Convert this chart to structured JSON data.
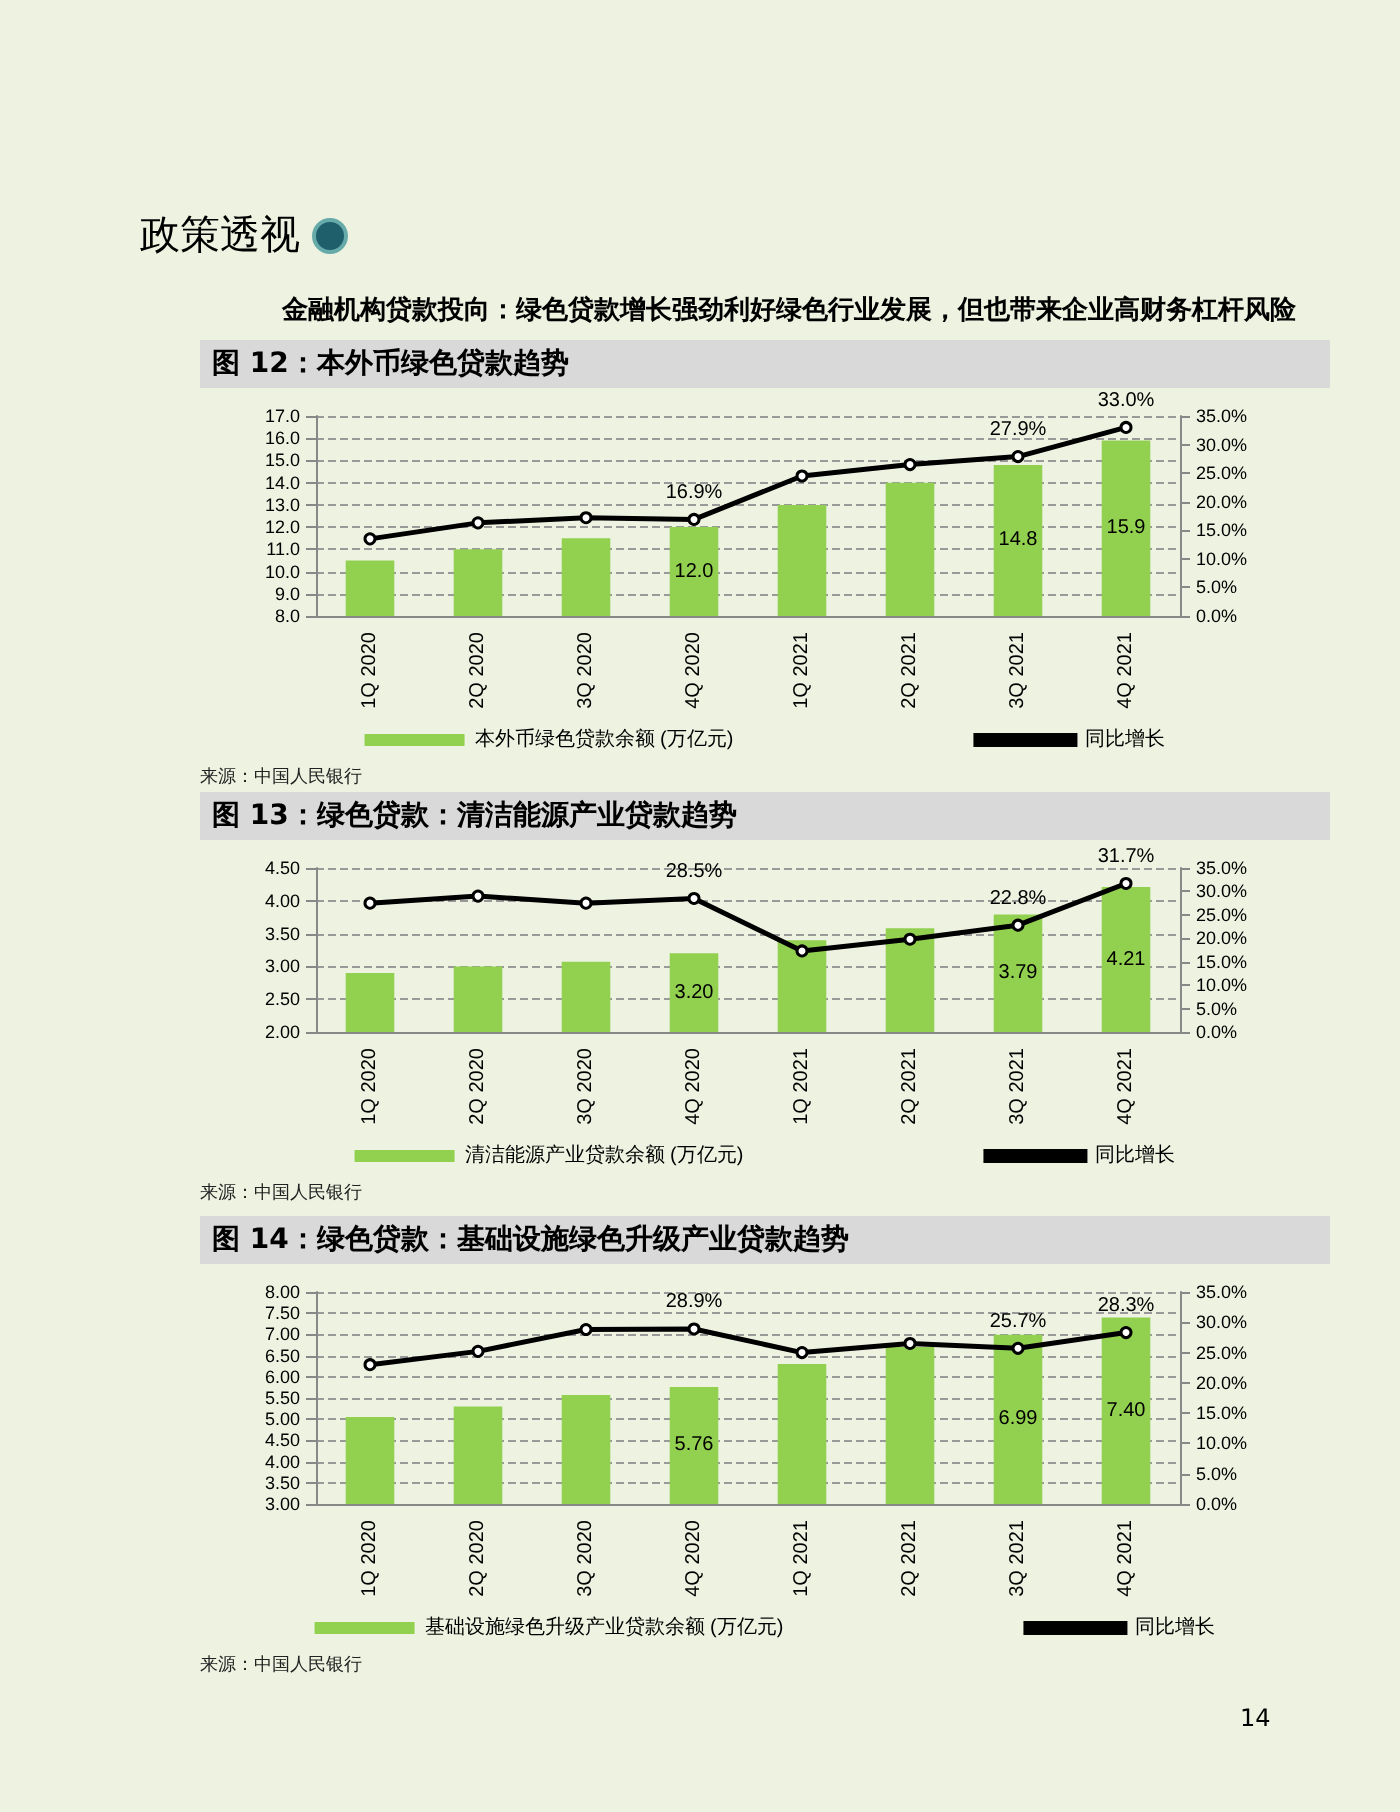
{
  "chart_data": [
    {
      "type": "bar",
      "title": "图 12：本外币绿色贷款趋势",
      "categories": [
        "1Q 2020",
        "2Q 2020",
        "3Q 2020",
        "4Q 2020",
        "1Q 2021",
        "2Q 2021",
        "3Q 2021",
        "4Q 2021"
      ],
      "series": [
        {
          "name": "本外币绿色贷款余额 (万亿元)",
          "color": "#92d050",
          "values": [
            10.5,
            11.0,
            11.5,
            12.0,
            13.0,
            14.0,
            14.8,
            15.9
          ],
          "value_labels": [
            null,
            null,
            null,
            "12.0",
            null,
            null,
            "14.8",
            "15.9"
          ]
        },
        {
          "name": "同比增长",
          "type": "line",
          "axis": "y2",
          "color": "#000000",
          "values": [
            13.5,
            16.3,
            17.2,
            16.9,
            24.5,
            26.5,
            27.9,
            33.0
          ],
          "value_labels": [
            null,
            null,
            null,
            "16.9%",
            null,
            null,
            "27.9%",
            "33.0%"
          ]
        }
      ],
      "ylim": [
        8,
        17
      ],
      "yticks": [
        {
          "value": 8,
          "label": "8.0"
        },
        {
          "value": 9,
          "label": "9.0"
        },
        {
          "value": 10,
          "label": "10.0"
        },
        {
          "value": 11,
          "label": "11.0"
        },
        {
          "value": 12,
          "label": "12.0"
        },
        {
          "value": 13,
          "label": "13.0"
        },
        {
          "value": 14,
          "label": "14.0"
        },
        {
          "value": 15,
          "label": "15.0"
        },
        {
          "value": 16,
          "label": "16.0"
        },
        {
          "value": 17,
          "label": "17.0"
        }
      ],
      "y2lim": [
        0,
        35
      ],
      "y2ticks": [
        {
          "value": 0,
          "label": "0.0%"
        },
        {
          "value": 5,
          "label": "5.0%"
        },
        {
          "value": 10,
          "label": "10.0%"
        },
        {
          "value": 15,
          "label": "15.0%"
        },
        {
          "value": 20,
          "label": "20.0%"
        },
        {
          "value": 25,
          "label": "25.0%"
        },
        {
          "value": 30,
          "label": "30.0%"
        },
        {
          "value": 35,
          "label": "35.0%"
        }
      ],
      "grid": "y",
      "legend": "bottom",
      "marker": "circle",
      "annotations": [
        "政策透视",
        "金融机构贷款投向：绿色贷款增长强劲利好绿色行业发展，但也带来企业高财务杠杆风险",
        "来源：中国人民银行"
      ]
    },
    {
      "type": "bar",
      "title": "图 13：绿色贷款：清洁能源产业贷款趋势",
      "categories": [
        "1Q 2020",
        "2Q 2020",
        "3Q 2020",
        "4Q 2020",
        "1Q 2021",
        "2Q 2021",
        "3Q 2021",
        "4Q 2021"
      ],
      "series": [
        {
          "name": "清洁能源产业贷款余额 (万亿元)",
          "color": "#92d050",
          "values": [
            2.9,
            3.0,
            3.07,
            3.2,
            3.4,
            3.58,
            3.79,
            4.21
          ],
          "value_labels": [
            null,
            null,
            null,
            "3.20",
            null,
            null,
            "3.79",
            "4.21"
          ]
        },
        {
          "name": "同比增长",
          "type": "line",
          "axis": "y2",
          "color": "#000000",
          "values": [
            27.5,
            29.0,
            27.5,
            28.5,
            17.3,
            19.8,
            22.8,
            31.7
          ],
          "value_labels": [
            null,
            null,
            null,
            "28.5%",
            null,
            null,
            "22.8%",
            "31.7%"
          ]
        }
      ],
      "ylim": [
        2,
        4.5
      ],
      "yticks": [
        {
          "value": 2,
          "label": "2.00"
        },
        {
          "value": 2.5,
          "label": "2.50"
        },
        {
          "value": 3,
          "label": "3.00"
        },
        {
          "value": 3.5,
          "label": "3.50"
        },
        {
          "value": 4,
          "label": "4.00"
        },
        {
          "value": 4.5,
          "label": "4.50"
        }
      ],
      "y2lim": [
        0,
        35
      ],
      "y2ticks": [
        {
          "value": 0,
          "label": "0.0%"
        },
        {
          "value": 5,
          "label": "5.0%"
        },
        {
          "value": 10,
          "label": "10.0%"
        },
        {
          "value": 15,
          "label": "15.0%"
        },
        {
          "value": 20,
          "label": "20.0%"
        },
        {
          "value": 25,
          "label": "25.0%"
        },
        {
          "value": 30,
          "label": "30.0%"
        },
        {
          "value": 35,
          "label": "35.0%"
        }
      ],
      "grid": "y",
      "legend": "bottom",
      "marker": "circle",
      "annotations": [
        "来源：中国人民银行"
      ]
    },
    {
      "type": "bar",
      "title": "图 14：绿色贷款：基础设施绿色升级产业贷款趋势",
      "categories": [
        "1Q 2020",
        "2Q 2020",
        "3Q 2020",
        "4Q 2020",
        "1Q 2021",
        "2Q 2021",
        "3Q 2021",
        "4Q 2021"
      ],
      "series": [
        {
          "name": "基础设施绿色升级产业贷款余额 (万亿元)",
          "color": "#92d050",
          "values": [
            5.05,
            5.3,
            5.57,
            5.76,
            6.3,
            6.7,
            6.99,
            7.4
          ],
          "value_labels": [
            null,
            null,
            null,
            "5.76",
            null,
            null,
            "6.99",
            "7.40"
          ]
        },
        {
          "name": "同比增长",
          "type": "line",
          "axis": "y2",
          "color": "#000000",
          "values": [
            23.0,
            25.2,
            28.8,
            28.9,
            25.0,
            26.5,
            25.7,
            28.3
          ],
          "value_labels": [
            null,
            null,
            null,
            "28.9%",
            null,
            null,
            "25.7%",
            "28.3%"
          ]
        }
      ],
      "ylim": [
        3,
        8
      ],
      "yticks": [
        {
          "value": 3,
          "label": "3.00"
        },
        {
          "value": 3.5,
          "label": "3.50"
        },
        {
          "value": 4,
          "label": "4.00"
        },
        {
          "value": 4.5,
          "label": "4.50"
        },
        {
          "value": 5,
          "label": "5.00"
        },
        {
          "value": 5.5,
          "label": "5.50"
        },
        {
          "value": 6,
          "label": "6.00"
        },
        {
          "value": 6.5,
          "label": "6.50"
        },
        {
          "value": 7,
          "label": "7.00"
        },
        {
          "value": 7.5,
          "label": "7.50"
        },
        {
          "value": 8,
          "label": "8.00"
        }
      ],
      "y2lim": [
        0,
        35
      ],
      "y2ticks": [
        {
          "value": 0,
          "label": "0.0%"
        },
        {
          "value": 5,
          "label": "5.0%"
        },
        {
          "value": 10,
          "label": "10.0%"
        },
        {
          "value": 15,
          "label": "15.0%"
        },
        {
          "value": 20,
          "label": "20.0%"
        },
        {
          "value": 25,
          "label": "25.0%"
        },
        {
          "value": 30,
          "label": "30.0%"
        },
        {
          "value": 35,
          "label": "35.0%"
        }
      ],
      "grid": "y",
      "legend": "bottom",
      "marker": "circle",
      "annotations": [
        "来源：中国人民银行",
        "14"
      ]
    }
  ]
}
